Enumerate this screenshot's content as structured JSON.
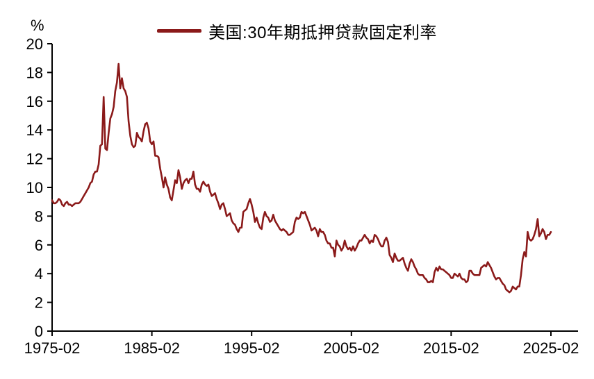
{
  "unit": "%",
  "chart_data": {
    "type": "line",
    "title": "",
    "ylabel": "%",
    "xlabel": "",
    "grid": false,
    "legend_position": "top-center",
    "ylim": [
      0,
      20
    ],
    "y_ticks": [
      0,
      2,
      4,
      6,
      8,
      10,
      12,
      14,
      16,
      18,
      20
    ],
    "x_range": [
      1975.083,
      2027.8
    ],
    "x_ticks": [
      {
        "x": 1975.083,
        "label": "1975-02"
      },
      {
        "x": 1985.083,
        "label": "1985-02"
      },
      {
        "x": 1995.083,
        "label": "1995-02"
      },
      {
        "x": 2005.083,
        "label": "2005-02"
      },
      {
        "x": 2015.083,
        "label": "2015-02"
      },
      {
        "x": 2025.083,
        "label": "2025-02"
      }
    ],
    "series": [
      {
        "name": "美国:30年期抵押贷款固定利率",
        "color": "#8B1A1A",
        "x_start": 1975.083,
        "x_step": 0.16667,
        "values": [
          9.1,
          8.9,
          8.9,
          9.0,
          9.2,
          9.1,
          8.8,
          8.7,
          8.9,
          9.0,
          8.8,
          8.8,
          8.7,
          8.8,
          8.9,
          8.9,
          8.9,
          9.0,
          9.2,
          9.4,
          9.6,
          9.8,
          10.0,
          10.3,
          10.4,
          10.9,
          11.1,
          11.1,
          11.6,
          12.9,
          13.0,
          16.3,
          12.7,
          12.6,
          13.8,
          14.8,
          15.1,
          15.6,
          16.7,
          17.3,
          18.6,
          16.9,
          17.6,
          16.9,
          16.7,
          16.3,
          14.6,
          13.6,
          13.0,
          12.8,
          12.9,
          13.8,
          13.5,
          13.4,
          13.2,
          13.9,
          14.4,
          14.5,
          14.1,
          13.2,
          13.0,
          13.2,
          12.2,
          12.2,
          12.1,
          11.3,
          10.7,
          10.0,
          10.7,
          10.2,
          9.9,
          9.3,
          9.1,
          9.8,
          10.5,
          10.3,
          11.2,
          10.7,
          9.9,
          10.3,
          10.5,
          10.6,
          10.3,
          10.6,
          10.6,
          11.1,
          10.2,
          9.9,
          9.9,
          9.7,
          10.2,
          10.4,
          10.2,
          10.1,
          10.2,
          9.7,
          9.4,
          9.5,
          9.6,
          9.2,
          8.9,
          8.5,
          8.8,
          8.9,
          8.5,
          8.0,
          8.1,
          8.2,
          7.7,
          7.5,
          7.4,
          7.1,
          6.9,
          7.2,
          7.2,
          8.3,
          8.4,
          8.5,
          8.9,
          9.2,
          8.8,
          8.3,
          7.6,
          7.9,
          7.5,
          7.2,
          7.1,
          7.9,
          8.3,
          8.0,
          7.9,
          7.6,
          7.7,
          8.1,
          7.7,
          7.5,
          7.3,
          7.1,
          7.0,
          7.1,
          7.0,
          6.9,
          6.7,
          6.7,
          6.8,
          6.9,
          7.6,
          7.9,
          7.8,
          7.9,
          8.3,
          8.2,
          8.3,
          8.0,
          7.7,
          7.4,
          7.0,
          7.1,
          7.2,
          7.0,
          6.6,
          7.1,
          6.9,
          6.9,
          6.7,
          6.3,
          6.1,
          6.1,
          5.8,
          5.8,
          5.2,
          6.3,
          6.0,
          5.9,
          5.6,
          5.8,
          6.3,
          5.9,
          5.7,
          5.8,
          5.6,
          5.9,
          5.6,
          5.8,
          6.1,
          6.3,
          6.3,
          6.5,
          6.7,
          6.5,
          6.4,
          6.1,
          6.3,
          6.2,
          6.7,
          6.6,
          6.4,
          6.1,
          5.9,
          5.9,
          6.3,
          6.5,
          6.2,
          5.3,
          5.1,
          4.8,
          5.4,
          5.1,
          4.9,
          4.9,
          5.0,
          5.1,
          4.7,
          4.4,
          4.2,
          4.7,
          5.0,
          4.8,
          4.5,
          4.3,
          4.0,
          3.9,
          3.9,
          3.9,
          3.7,
          3.6,
          3.4,
          3.4,
          3.5,
          3.4,
          4.1,
          4.4,
          4.2,
          4.5,
          4.3,
          4.3,
          4.2,
          4.1,
          4.0,
          3.9,
          3.7,
          3.7,
          4.0,
          3.9,
          3.8,
          4.0,
          3.7,
          3.6,
          3.6,
          3.4,
          3.5,
          4.2,
          4.2,
          4.0,
          3.9,
          3.9,
          3.9,
          3.9,
          4.4,
          4.5,
          4.6,
          4.5,
          4.8,
          4.6,
          4.4,
          4.1,
          3.8,
          3.6,
          3.7,
          3.7,
          3.5,
          3.3,
          3.2,
          2.9,
          2.8,
          2.7,
          2.8,
          3.1,
          3.0,
          2.9,
          3.1,
          3.1,
          3.9,
          5.0,
          5.5,
          5.2,
          6.9,
          6.4,
          6.3,
          6.4,
          6.7,
          7.1,
          7.8,
          6.6,
          6.8,
          7.1,
          6.9,
          6.4,
          6.7,
          6.7,
          6.9
        ]
      }
    ]
  }
}
